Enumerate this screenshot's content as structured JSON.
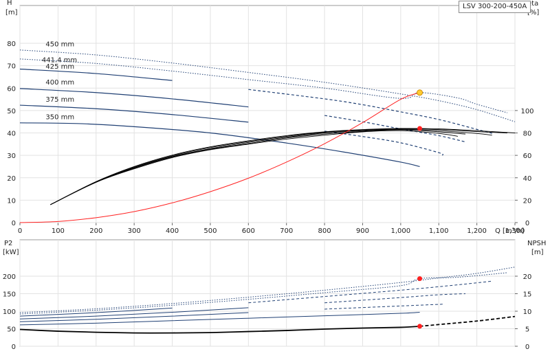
{
  "chart_data": [
    {
      "type": "line",
      "title": "",
      "model": "LSV 300-200-450A",
      "xlabel": "Q [m³/h]",
      "ylabel": "H [m]",
      "y2label": "eta [%]",
      "xlim": [
        0,
        1300
      ],
      "ylim": [
        0,
        90
      ],
      "y2lim": [
        0,
        140
      ],
      "x_ticks": [
        0,
        100,
        200,
        300,
        400,
        500,
        600,
        700,
        800,
        900,
        1000,
        1100,
        1200,
        1300
      ],
      "x_tick_labels": [
        "0",
        "100",
        "200",
        "300",
        "400",
        "500",
        "600",
        "700",
        "800",
        "900",
        "1,000",
        "1,100",
        "1,200",
        "1,300"
      ],
      "y_ticks": [
        0,
        10,
        20,
        30,
        40,
        50,
        60,
        70,
        80
      ],
      "y2_ticks": [
        0,
        20,
        40,
        60,
        80,
        100
      ],
      "grid": true,
      "series": [
        {
          "name": "450 mm",
          "color": "#1f3f73",
          "points": [
            [
              0,
              77
            ],
            [
              200,
              74.8
            ],
            [
              400,
              71.2
            ],
            [
              600,
              67
            ],
            [
              800,
              62.6
            ],
            [
              1000,
              57.4
            ],
            [
              1100,
              54.4
            ],
            [
              1200,
              50.4
            ],
            [
              1300,
              45
            ]
          ],
          "solid_until": 0,
          "style": "dotted"
        },
        {
          "name": "441.4 mm",
          "color": "#1f3f73",
          "points": [
            [
              0,
              73
            ],
            [
              200,
              71
            ],
            [
              400,
              67.6
            ],
            [
              600,
              63.8
            ],
            [
              800,
              60
            ],
            [
              1000,
              55.4
            ],
            [
              1050,
              58
            ],
            [
              1150,
              55.6
            ],
            [
              1200,
              52.8
            ],
            [
              1280,
              49
            ]
          ],
          "solid_until": 0,
          "style": "dotted"
        },
        {
          "name": "425 mm",
          "color": "#1f3f73",
          "points": [
            [
              0,
              68.5
            ],
            [
              200,
              66.5
            ],
            [
              400,
              63.4
            ],
            [
              600,
              59.4
            ],
            [
              800,
              55.2
            ],
            [
              900,
              52.6
            ],
            [
              1000,
              49.4
            ],
            [
              1100,
              46
            ],
            [
              1200,
              41.6
            ],
            [
              1240,
              39.8
            ]
          ],
          "solid_until": 500,
          "style": "dashed"
        },
        {
          "name": "400 mm",
          "color": "#1f3f73",
          "points": [
            [
              0,
              59.8
            ],
            [
              200,
              58
            ],
            [
              400,
              55.2
            ],
            [
              600,
              51.6
            ],
            [
              800,
              47.8
            ],
            [
              900,
              45
            ],
            [
              1000,
              41.8
            ],
            [
              1100,
              38.8
            ],
            [
              1170,
              36
            ]
          ],
          "solid_until": 750,
          "style": "dashed"
        },
        {
          "name": "375 mm",
          "color": "#1f3f73",
          "points": [
            [
              0,
              52.4
            ],
            [
              200,
              50.8
            ],
            [
              400,
              48.2
            ],
            [
              600,
              44.8
            ],
            [
              800,
              40.8
            ],
            [
              900,
              38.4
            ],
            [
              1000,
              35.6
            ],
            [
              1100,
              31.2
            ],
            [
              1110,
              30
            ]
          ],
          "solid_until": 760,
          "style": "dashed"
        },
        {
          "name": "350 mm",
          "color": "#1f3f73",
          "points": [
            [
              0,
              44.5
            ],
            [
              150,
              44.2
            ],
            [
              300,
              42.8
            ],
            [
              500,
              40
            ],
            [
              700,
              35.5
            ],
            [
              850,
              31.5
            ],
            [
              1000,
              27
            ],
            [
              1050,
              25
            ]
          ],
          "solid_until": 1050,
          "style": "solid"
        }
      ],
      "eta_curves": [
        {
          "color": "#000",
          "points": [
            [
              80,
              16
            ],
            [
              200,
              36
            ],
            [
              300,
              48
            ],
            [
              400,
              58
            ],
            [
              500,
              65
            ],
            [
              600,
              70
            ],
            [
              700,
              74.5
            ],
            [
              800,
              78
            ],
            [
              900,
              81
            ],
            [
              1000,
              82
            ],
            [
              1100,
              79.6
            ],
            [
              1150,
              77
            ]
          ]
        },
        {
          "color": "#000",
          "points": [
            [
              80,
              16
            ],
            [
              200,
              36
            ],
            [
              300,
              48.5
            ],
            [
              400,
              58.5
            ],
            [
              500,
              65.5
            ],
            [
              600,
              70.5
            ],
            [
              700,
              75.5
            ],
            [
              800,
              79
            ],
            [
              900,
              81.4
            ],
            [
              1000,
              82.8
            ],
            [
              1100,
              81
            ],
            [
              1170,
              79
            ]
          ]
        },
        {
          "color": "#000",
          "points": [
            [
              80,
              16
            ],
            [
              200,
              36.2
            ],
            [
              300,
              49
            ],
            [
              400,
              59
            ],
            [
              500,
              66
            ],
            [
              600,
              71.5
            ],
            [
              700,
              76.2
            ],
            [
              800,
              80
            ],
            [
              900,
              82
            ],
            [
              1000,
              83.2
            ],
            [
              1100,
              82
            ],
            [
              1200,
              79.5
            ],
            [
              1240,
              78
            ]
          ]
        },
        {
          "color": "#000",
          "points": [
            [
              80,
              16
            ],
            [
              200,
              36.4
            ],
            [
              300,
              49.5
            ],
            [
              400,
              59.6
            ],
            [
              500,
              67
            ],
            [
              600,
              72.3
            ],
            [
              700,
              77
            ],
            [
              800,
              80.6
            ],
            [
              900,
              82.6
            ],
            [
              1000,
              83.6
            ],
            [
              1100,
              83
            ],
            [
              1200,
              81.2
            ],
            [
              1280,
              80
            ]
          ]
        },
        {
          "color": "#000",
          "points": [
            [
              80,
              16
            ],
            [
              200,
              36.6
            ],
            [
              300,
              50
            ],
            [
              400,
              60.2
            ],
            [
              500,
              67.6
            ],
            [
              600,
              73
            ],
            [
              700,
              77.6
            ],
            [
              800,
              81
            ],
            [
              900,
              83
            ],
            [
              1000,
              84
            ],
            [
              1100,
              83.6
            ],
            [
              1200,
              82
            ],
            [
              1300,
              80
            ]
          ]
        }
      ],
      "system_curve": {
        "color": "#ff2020",
        "points": [
          [
            0,
            0
          ],
          [
            100,
            0.5
          ],
          [
            200,
            2.2
          ],
          [
            300,
            4.9
          ],
          [
            400,
            8.8
          ],
          [
            500,
            13.8
          ],
          [
            600,
            19.8
          ],
          [
            700,
            27
          ],
          [
            800,
            35.2
          ],
          [
            900,
            44.6
          ],
          [
            1000,
            55
          ],
          [
            1050,
            58
          ]
        ]
      },
      "duty_point_H": {
        "q": 1050,
        "h": 58,
        "color": "#ffcc33"
      },
      "duty_point_eta": {
        "q": 1050,
        "eta": 84,
        "color": "#ff2020"
      },
      "curve_labels": [
        {
          "text": "450 mm",
          "q": 35,
          "h": 78
        },
        {
          "text": "441.4 mm",
          "q": 25,
          "h": 71
        },
        {
          "text": "425 mm",
          "q": 35,
          "h": 68
        },
        {
          "text": "400 mm",
          "q": 35,
          "h": 61
        },
        {
          "text": "375 mm",
          "q": 35,
          "h": 53.4
        },
        {
          "text": "350 mm",
          "q": 35,
          "h": 45.5
        }
      ]
    },
    {
      "type": "line",
      "title": "",
      "xlabel": "",
      "ylabel": "P2 [kW]",
      "y2label": "NPSH [m]",
      "xlim": [
        0,
        1300
      ],
      "ylim": [
        0,
        230
      ],
      "y2lim": [
        0,
        23
      ],
      "y_ticks": [
        0,
        50,
        100,
        150,
        200
      ],
      "y2_ticks": [
        0,
        5,
        10,
        15,
        20
      ],
      "grid": true,
      "power_curves": [
        {
          "color": "#1f3f73",
          "points": [
            [
              0,
              96
            ],
            [
              200,
              107
            ],
            [
              400,
              122
            ],
            [
              600,
              140
            ],
            [
              800,
              160
            ],
            [
              1000,
              182
            ],
            [
              1100,
              195
            ],
            [
              1200,
              208
            ],
            [
              1300,
              226
            ]
          ],
          "solid_until": 0
        },
        {
          "color": "#1f3f73",
          "points": [
            [
              0,
              92
            ],
            [
              200,
              103
            ],
            [
              400,
              117
            ],
            [
              600,
              134
            ],
            [
              800,
              153
            ],
            [
              1000,
              173
            ],
            [
              1050,
              193
            ],
            [
              1150,
              197
            ],
            [
              1280,
              210
            ]
          ],
          "solid_until": 0
        },
        {
          "color": "#1f3f73",
          "points": [
            [
              0,
              86
            ],
            [
              200,
              96
            ],
            [
              400,
              109
            ],
            [
              600,
              124
            ],
            [
              800,
              142
            ],
            [
              1000,
              160
            ],
            [
              1100,
              170
            ],
            [
              1200,
              181
            ],
            [
              1240,
              186
            ]
          ],
          "solid_until": 500
        },
        {
          "color": "#1f3f73",
          "points": [
            [
              0,
              78
            ],
            [
              200,
              86
            ],
            [
              400,
              97
            ],
            [
              600,
              110
            ],
            [
              800,
              124
            ],
            [
              1000,
              139
            ],
            [
              1100,
              147
            ],
            [
              1170,
              150
            ]
          ],
          "solid_until": 750
        },
        {
          "color": "#1f3f73",
          "points": [
            [
              0,
              70
            ],
            [
              200,
              77
            ],
            [
              400,
              86
            ],
            [
              600,
              96
            ],
            [
              800,
              106
            ],
            [
              1000,
              115
            ],
            [
              1110,
              120
            ]
          ],
          "solid_until": 760
        },
        {
          "color": "#1f3f73",
          "points": [
            [
              0,
              61
            ],
            [
              200,
              66
            ],
            [
              400,
              73
            ],
            [
              600,
              80
            ],
            [
              800,
              87
            ],
            [
              1000,
              94
            ],
            [
              1050,
              97
            ]
          ],
          "solid_until": 1050
        }
      ],
      "npsh_curve": {
        "color": "#000",
        "points": [
          [
            0,
            4.8
          ],
          [
            100,
            4.3
          ],
          [
            200,
            4
          ],
          [
            300,
            3.8
          ],
          [
            400,
            3.8
          ],
          [
            500,
            3.9
          ],
          [
            600,
            4.2
          ],
          [
            700,
            4.5
          ],
          [
            800,
            4.9
          ],
          [
            900,
            5.2
          ],
          [
            1000,
            5.4
          ],
          [
            1050,
            5.7
          ],
          [
            1100,
            6.2
          ],
          [
            1200,
            7.2
          ],
          [
            1300,
            8.5
          ]
        ],
        "solid_until": 1050
      },
      "duty_point_P2": {
        "q": 1050,
        "p": 193,
        "color": "#ff2020"
      },
      "duty_point_NPSH": {
        "q": 1050,
        "npsh": 5.7,
        "color": "#ff2020"
      }
    }
  ]
}
